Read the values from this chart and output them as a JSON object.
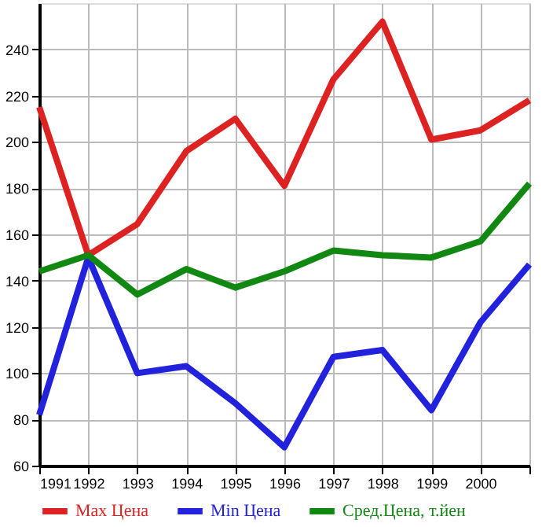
{
  "chart_data": {
    "type": "line",
    "x": [
      1991,
      1992,
      1993,
      1994,
      1995,
      1996,
      1997,
      1998,
      1999,
      2000,
      2001
    ],
    "xlim": [
      1991,
      2001
    ],
    "xticks": [
      1991,
      1992,
      1993,
      1994,
      1995,
      1996,
      1997,
      1998,
      1999,
      2000,
      {
        "value": 2001,
        "label": null
      }
    ],
    "ylim": [
      60,
      260
    ],
    "yticks": [
      60,
      80,
      100,
      120,
      140,
      160,
      180,
      200,
      220,
      240
    ],
    "grid": true,
    "legend": "bottom",
    "marker": "none",
    "line_style": "solid",
    "series": [
      {
        "name": "Max Цена",
        "color": "#dd2222",
        "values": [
          215,
          151,
          164.5,
          196,
          210,
          181,
          227,
          252,
          201,
          205,
          218
        ]
      },
      {
        "name": "Min Цена",
        "color": "#2222dd",
        "values": [
          82,
          150,
          100,
          103,
          87,
          68,
          107,
          110,
          84,
          122,
          147
        ]
      },
      {
        "name": "Сред.Цена, т.йен",
        "color": "#118811",
        "values": [
          144,
          151,
          134,
          145,
          137,
          144,
          153,
          151,
          150,
          157,
          182
        ]
      }
    ]
  }
}
